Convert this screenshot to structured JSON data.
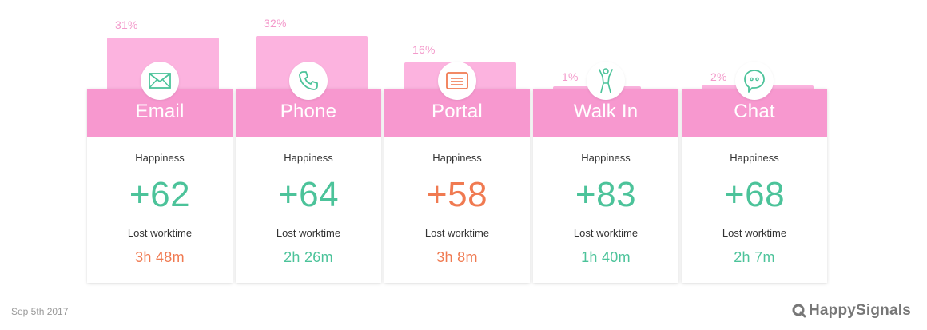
{
  "chart_data": {
    "type": "bar",
    "categories": [
      "Email",
      "Phone",
      "Portal",
      "Walk In",
      "Chat"
    ],
    "values": [
      31,
      32,
      16,
      1,
      2
    ],
    "value_labels": [
      "31%",
      "32%",
      "16%",
      "1%",
      "2%"
    ],
    "ylim": [
      0,
      32
    ],
    "grid": false
  },
  "channels": [
    {
      "name": "Email",
      "icon": "envelope-icon",
      "pct": "31%",
      "happiness_label": "Happiness",
      "happiness": "+62",
      "happiness_color": "#4cc39a",
      "lost_label": "Lost worktime",
      "lost": "3h 48m",
      "lost_color": "#f07a51"
    },
    {
      "name": "Phone",
      "icon": "phone-icon",
      "pct": "32%",
      "happiness_label": "Happiness",
      "happiness": "+64",
      "happiness_color": "#4cc39a",
      "lost_label": "Lost worktime",
      "lost": "2h 26m",
      "lost_color": "#4cc39a"
    },
    {
      "name": "Portal",
      "icon": "portal-icon",
      "pct": "16%",
      "happiness_label": "Happiness",
      "happiness": "+58",
      "happiness_color": "#f07a51",
      "lost_label": "Lost worktime",
      "lost": "3h 8m",
      "lost_color": "#f07a51"
    },
    {
      "name": "Walk In",
      "icon": "person-icon",
      "pct": "1%",
      "happiness_label": "Happiness",
      "happiness": "+83",
      "happiness_color": "#4cc39a",
      "lost_label": "Lost worktime",
      "lost": "1h 40m",
      "lost_color": "#4cc39a"
    },
    {
      "name": "Chat",
      "icon": "chat-bubble-icon",
      "pct": "2%",
      "happiness_label": "Happiness",
      "happiness": "+68",
      "happiness_color": "#4cc39a",
      "lost_label": "Lost worktime",
      "lost": "2h 7m",
      "lost_color": "#4cc39a"
    }
  ],
  "footer": {
    "date": "Sep 5th 2017",
    "brand": "HappySignals",
    "brand_icon": "q-logo-icon"
  },
  "colors": {
    "bar": "#fcb3df",
    "header": "#f798cf",
    "accent_green": "#4cc39a",
    "accent_orange": "#f07a51",
    "percent_text": "#f39acb"
  }
}
